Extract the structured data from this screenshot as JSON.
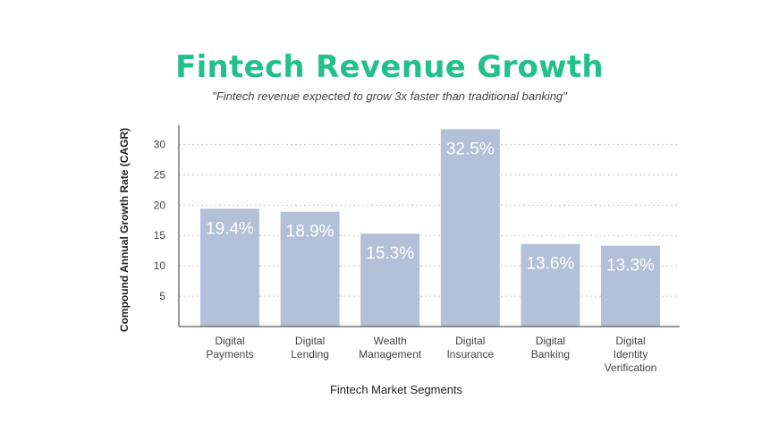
{
  "colors": {
    "title": "#22c08a",
    "bar": "#b2c1d8",
    "bar_label": "#ffffff",
    "axis": "#333333",
    "grid": "#c8c8c8",
    "text": "#444444"
  },
  "chart_data": {
    "type": "bar",
    "title": "Fintech Revenue Growth",
    "subtitle": "\"Fintech revenue expected to grow 3x faster than traditional banking\"",
    "xlabel": "Fintech Market Segments",
    "ylabel": "Compound  Annual Growth Rate (CAGR)",
    "categories": [
      [
        "Digital",
        "Payments"
      ],
      [
        "Digital",
        "Lending"
      ],
      [
        "Wealth",
        "Management"
      ],
      [
        "Digital",
        "Insurance"
      ],
      [
        "Digital",
        "Banking"
      ],
      [
        "Digital",
        "Identity",
        "Verification"
      ]
    ],
    "values": [
      19.4,
      18.9,
      15.3,
      32.5,
      13.6,
      13.3
    ],
    "data_labels": [
      "19.4%",
      "18.9%",
      "15.3%",
      "32.5%",
      "13.6%",
      "13.3%"
    ],
    "y_ticks": [
      5,
      10,
      15,
      20,
      25,
      30
    ],
    "ylim": [
      0,
      32.5
    ],
    "grid": true,
    "grid_style": "dotted",
    "legend": false
  }
}
